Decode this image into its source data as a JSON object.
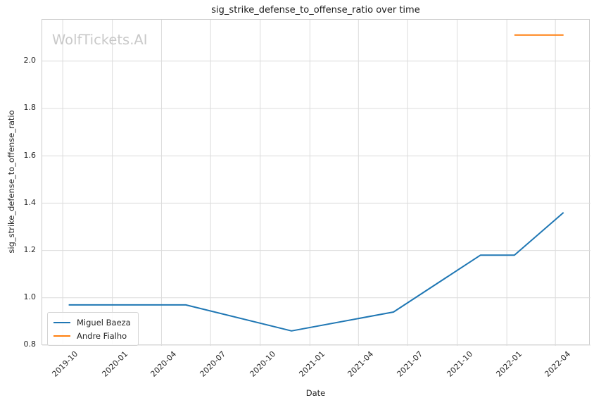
{
  "chart_data": {
    "type": "line",
    "title": "sig_strike_defense_to_offense_ratio over time",
    "xlabel": "Date",
    "ylabel": "sig_strike_defense_to_offense_ratio",
    "watermark": "WolfTickets.AI",
    "grid": true,
    "legend_position": "lower left",
    "x_ticks": [
      {
        "label": "2019-10",
        "date": "2019-10-01"
      },
      {
        "label": "2020-01",
        "date": "2020-01-01"
      },
      {
        "label": "2020-04",
        "date": "2020-04-01"
      },
      {
        "label": "2020-07",
        "date": "2020-07-01"
      },
      {
        "label": "2020-10",
        "date": "2020-10-01"
      },
      {
        "label": "2021-01",
        "date": "2021-01-01"
      },
      {
        "label": "2021-04",
        "date": "2021-04-01"
      },
      {
        "label": "2021-07",
        "date": "2021-07-01"
      },
      {
        "label": "2021-10",
        "date": "2021-10-01"
      },
      {
        "label": "2022-01",
        "date": "2022-01-01"
      },
      {
        "label": "2022-04",
        "date": "2022-04-01"
      }
    ],
    "y_ticks": [
      {
        "label": "0.8",
        "value": 0.8
      },
      {
        "label": "1.0",
        "value": 1.0
      },
      {
        "label": "1.2",
        "value": 1.2
      },
      {
        "label": "1.4",
        "value": 1.4
      },
      {
        "label": "1.6",
        "value": 1.6
      },
      {
        "label": "1.8",
        "value": 1.8
      },
      {
        "label": "2.0",
        "value": 2.0
      }
    ],
    "xlim_dates": [
      "2019-08-24",
      "2022-06-05"
    ],
    "ylim": [
      0.797,
      2.175
    ],
    "series": [
      {
        "name": "Miguel Baeza",
        "color": "#1f77b4",
        "points": [
          {
            "date": "2019-10-12",
            "value": 0.97
          },
          {
            "date": "2020-05-16",
            "value": 0.97
          },
          {
            "date": "2020-11-28",
            "value": 0.86
          },
          {
            "date": "2021-06-05",
            "value": 0.94
          },
          {
            "date": "2021-11-13",
            "value": 1.18
          },
          {
            "date": "2022-01-15",
            "value": 1.18
          },
          {
            "date": "2022-04-16",
            "value": 1.36
          }
        ]
      },
      {
        "name": "Andre Fialho",
        "color": "#ff7f0e",
        "points": [
          {
            "date": "2022-01-15",
            "value": 2.11
          },
          {
            "date": "2022-04-16",
            "value": 2.11
          }
        ]
      }
    ],
    "colors": {
      "grid": "#dcdcdc",
      "spine": "#cccccc",
      "text": "#262626",
      "watermark": "#c9c9c9"
    }
  }
}
